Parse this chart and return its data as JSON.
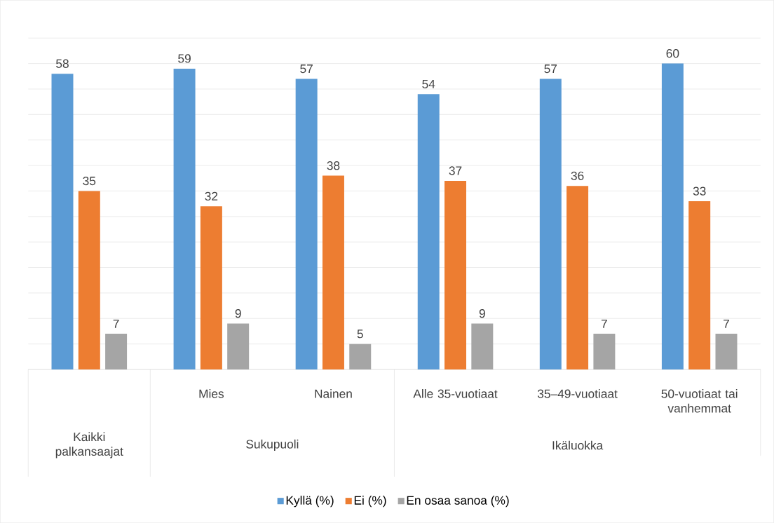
{
  "chart_data": {
    "type": "bar",
    "categories": [
      null,
      "Mies",
      "Nainen",
      "Alle 35-vuotiaat",
      "35–49-vuotiaat",
      "50-vuotiaat tai vanhemmat"
    ],
    "series": [
      {
        "name": "Kyllä (%)",
        "color": "#5b9bd5",
        "values": [
          58,
          59,
          57,
          54,
          57,
          60
        ]
      },
      {
        "name": "Ei (%)",
        "color": "#ed7d31",
        "values": [
          35,
          32,
          38,
          37,
          36,
          33
        ]
      },
      {
        "name": "En osaa sanoa (%)",
        "color": "#a5a5a5",
        "values": [
          7,
          9,
          5,
          9,
          7,
          7
        ]
      }
    ],
    "annotations": [
      "Kaikki palkansaajat",
      "Sukupuoli",
      "Ikäluokka"
    ],
    "grid": "y",
    "legend": "bottom",
    "data_labels": true,
    "tick_labels": "x"
  }
}
